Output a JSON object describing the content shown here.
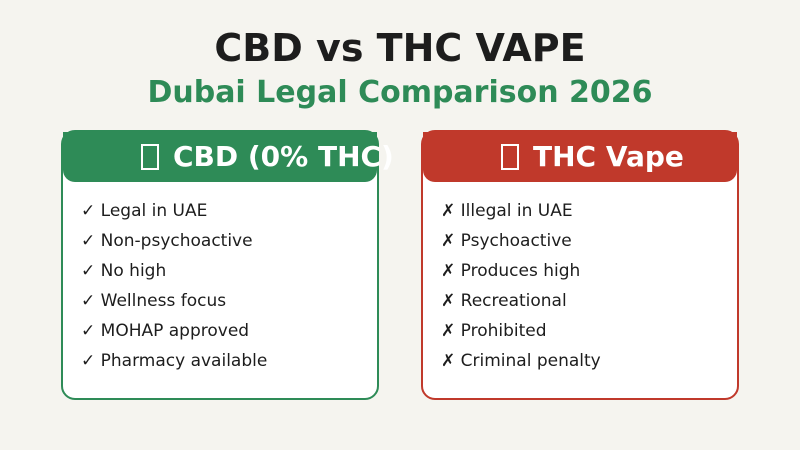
{
  "header": {
    "title": "CBD vs THC VAPE",
    "subtitle": "Dubai Legal Comparison 2026"
  },
  "cards": [
    {
      "title": "CBD (0% THC)",
      "items": [
        "✓ Legal in UAE",
        "✓ Non-psychoactive",
        "✓ No high",
        "✓ Wellness focus",
        "✓ MOHAP approved",
        "✓ Pharmacy available"
      ]
    },
    {
      "title": "THC Vape",
      "items": [
        "✗ Illegal in UAE",
        "✗ Psychoactive",
        "✗ Produces high",
        "✗ Recreational",
        "✗ Prohibited",
        "✗ Criminal penalty"
      ]
    }
  ]
}
